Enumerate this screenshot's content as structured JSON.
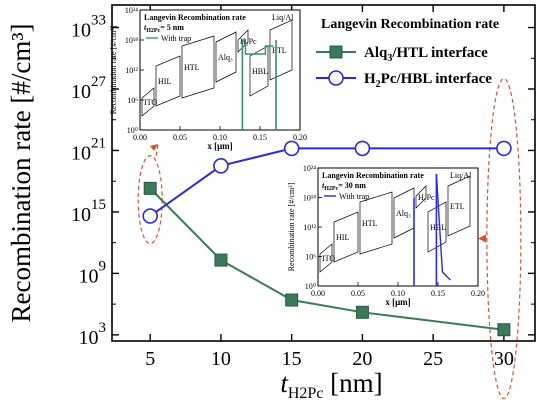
{
  "chart_data": {
    "type": "line",
    "xlabel_main": "t",
    "xlabel_sub": "H2Pc",
    "xlabel_unit": " [nm]",
    "ylabel": "Recombination rate [#/cm³]",
    "x": [
      5,
      10,
      15,
      20,
      25,
      30
    ],
    "x_ticks": [
      "5",
      "10",
      "15",
      "20",
      "25",
      "30"
    ],
    "y_log_ticks": [
      3,
      9,
      15,
      21,
      27,
      33
    ],
    "y_tick_base": "10",
    "xlim": [
      2.3,
      32.2
    ],
    "ylim_log10": [
      2.4,
      35.2
    ],
    "legend_title": "Langevin Recombination rate",
    "series": [
      {
        "name": "Alq3/HTL interface",
        "name_main": "Alq",
        "name_sub": "3",
        "name_rest": "/HTL interface",
        "color": "#3a7a5a",
        "marker": "square-filled",
        "x": [
          5,
          10,
          15,
          20,
          30
        ],
        "y_log10": [
          17.3,
          10.3,
          6.4,
          5.2,
          3.5
        ]
      },
      {
        "name": "H2Pc/HBL interface",
        "name_main": "H",
        "name_sub": "2",
        "name_rest": "Pc/HBL interface",
        "color": "#2b2bd6",
        "marker": "circle-open",
        "x": [
          5,
          10,
          15,
          20,
          30
        ],
        "y_log10": [
          14.6,
          19.5,
          21.2,
          21.2,
          21.2
        ]
      }
    ],
    "insets": [
      {
        "title": "Langevin Recombination rate",
        "thickness_label": "= 5 nm",
        "legend": "With trap",
        "line_color": "#3a8a7a",
        "xlabel": "x [μm]",
        "ylabel": "Recombination rate [#/cm³]",
        "x_ticks": [
          "0.00",
          "0.05",
          "0.10",
          "0.15",
          "0.20"
        ],
        "y_ticks": [
          "10⁰",
          "10⁶",
          "10¹²",
          "10¹⁸",
          "10²⁴"
        ],
        "layers": [
          "ITO",
          "HIL",
          "HTL",
          "Alq₃",
          "H₂Pc",
          "HBL",
          "ETL",
          "Liq/Al"
        ]
      },
      {
        "title": "Langevin Recombination rate",
        "thickness_label": "= 30 nm",
        "legend": "With trap",
        "line_color": "#2b2bd6",
        "xlabel": "x [μm]",
        "ylabel": "Recombination rate [#/cm³]",
        "x_ticks": [
          "0.00",
          "0.05",
          "0.10",
          "0.15",
          "0.20"
        ],
        "y_ticks": [
          "10⁰",
          "10⁶",
          "10¹²",
          "10¹⁸",
          "10²⁴"
        ],
        "layers": [
          "ITO",
          "HIL",
          "HTL",
          "Alq₃",
          "H₂Pc",
          "HBL",
          "ETL",
          "Liq/Al"
        ]
      }
    ]
  },
  "colors": {
    "callout": "#d9532b",
    "axis": "#000000"
  }
}
